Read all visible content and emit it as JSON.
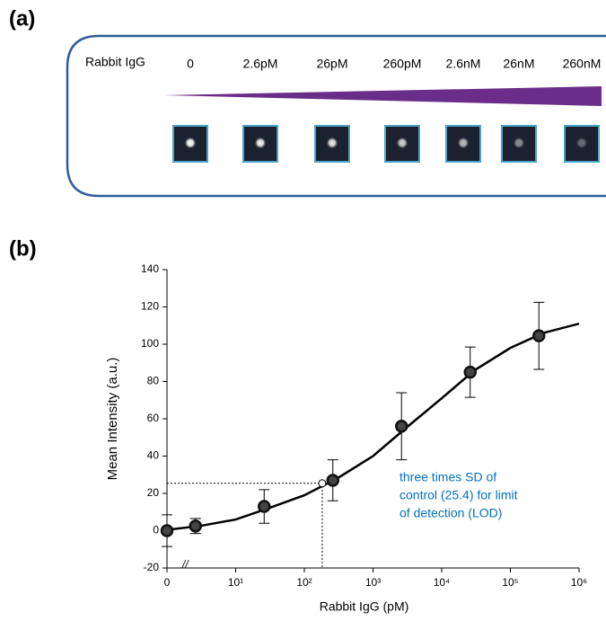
{
  "panel_labels": [
    "(a)",
    "(b)"
  ],
  "panel_a": {
    "analyte": "Rabbit IgG",
    "concentrations": [
      "0",
      "2.6pM",
      "26pM",
      "260pM",
      "2.6nM",
      "26nM",
      "260nM"
    ]
  },
  "chart_data": {
    "type": "scatter",
    "x_label": "Rabbit IgG (pM)",
    "y_label": "Mean Intensity (a.u.)",
    "log_x": true,
    "xlim": [
      1,
      1000000
    ],
    "xticks": [
      0,
      {
        "value": 10,
        "label": "10¹"
      },
      {
        "value": 100,
        "label": "10²"
      },
      {
        "value": 1000,
        "label": "10³"
      },
      {
        "value": 10000,
        "label": "10⁴"
      },
      {
        "value": 100000,
        "label": "10⁵"
      },
      {
        "value": 1000000,
        "label": "10⁶"
      }
    ],
    "ylim": [
      -20,
      140
    ],
    "yticks": [
      -20,
      0,
      20,
      40,
      60,
      80,
      100,
      120,
      140
    ],
    "points": {
      "color": "#111111",
      "x": [
        0,
        2.6,
        26,
        260,
        2600,
        26000,
        260000
      ],
      "values": [
        0,
        2.5,
        13,
        27,
        56,
        85,
        104.5
      ],
      "errors": [
        8.5,
        4,
        9,
        11,
        18,
        13.5,
        18
      ]
    },
    "fit": {
      "color": "#000000",
      "x": [
        1,
        3,
        10,
        30,
        100,
        300,
        1000,
        3000,
        10000,
        30000,
        100000,
        300000,
        1000000
      ],
      "values": [
        0.5,
        2.5,
        6,
        12,
        19,
        28,
        40,
        55,
        71,
        86,
        98,
        106,
        111
      ]
    },
    "lod": {
      "x": 182,
      "value": 25.4
    },
    "annotation": {
      "color": "#0070c0",
      "lines": [
        "three times SD of",
        "control (25.4) for limit",
        "of detection (LOD)"
      ]
    }
  }
}
